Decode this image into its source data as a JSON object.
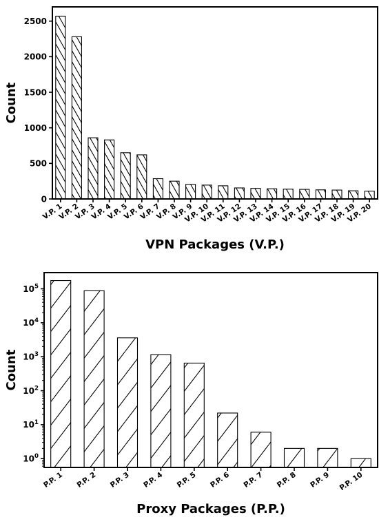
{
  "chart_data": [
    {
      "type": "bar",
      "xlabel": "VPN Packages (V.P.)",
      "ylabel": "Count",
      "yscale": "linear",
      "ylim": [
        0,
        2700
      ],
      "yticks": [
        0,
        500,
        1000,
        1500,
        2000,
        2500
      ],
      "ytick_labels": [
        "0",
        "500",
        "1000",
        "1500",
        "2000",
        "2500"
      ],
      "hatch": "diagonal",
      "grid": false,
      "categories": [
        "V.P. 1",
        "V.P. 2",
        "V.P. 3",
        "V.P. 4",
        "V.P. 5",
        "V.P. 6",
        "V.P. 7",
        "V.P. 8",
        "V.P. 9",
        "V.P. 10",
        "V.P. 11",
        "V.P. 12",
        "V.P. 13",
        "V.P. 14",
        "V.P. 15",
        "V.P. 16",
        "V.P. 17",
        "V.P. 18",
        "V.P. 19",
        "V.P. 20"
      ],
      "values": [
        2570,
        2280,
        860,
        830,
        650,
        620,
        285,
        250,
        205,
        195,
        185,
        155,
        148,
        143,
        138,
        135,
        128,
        125,
        115,
        110
      ]
    },
    {
      "type": "bar",
      "xlabel": "Proxy Packages (P.P.)",
      "ylabel": "Count",
      "yscale": "log",
      "ylim": [
        0.55,
        300000
      ],
      "yticks": [
        1,
        10,
        100,
        1000,
        10000,
        100000
      ],
      "ytick_labels": [
        {
          "base": "10",
          "exp": "0"
        },
        {
          "base": "10",
          "exp": "1"
        },
        {
          "base": "10",
          "exp": "2"
        },
        {
          "base": "10",
          "exp": "3"
        },
        {
          "base": "10",
          "exp": "4"
        },
        {
          "base": "10",
          "exp": "5"
        }
      ],
      "hatch": "diagonal",
      "grid": false,
      "categories": [
        "P.P. 1",
        "P.P. 2",
        "P.P. 3",
        "P.P. 4",
        "P.P. 5",
        "P.P. 6",
        "P.P. 7",
        "P.P. 8",
        "P.P. 9",
        "P.P. 10"
      ],
      "values": [
        175000,
        88000,
        3600,
        1150,
        650,
        22,
        6,
        2,
        2,
        1
      ]
    }
  ]
}
